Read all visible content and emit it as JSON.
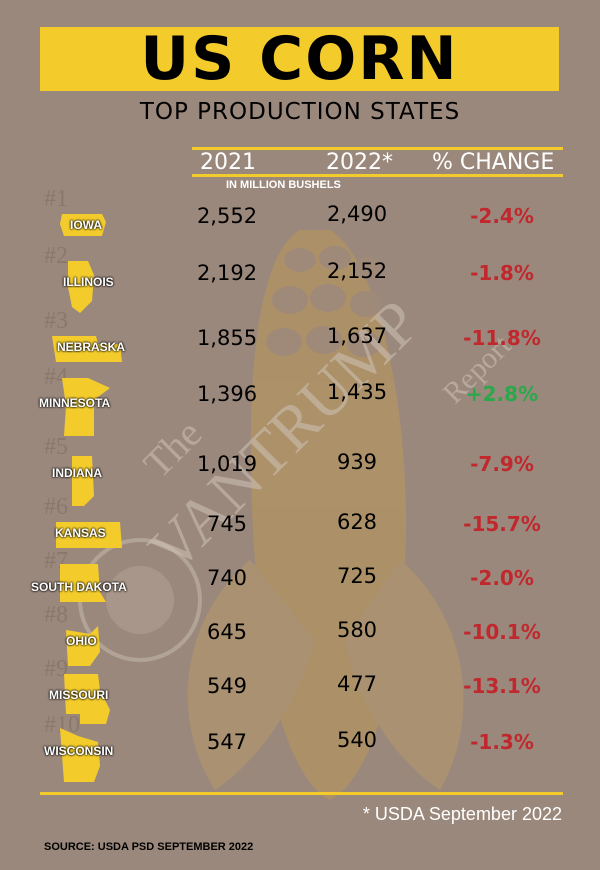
{
  "header": {
    "title": "US CORN",
    "subtitle": "TOP PRODUCTION STATES"
  },
  "colors": {
    "background": "#9b887c",
    "accent_yellow": "#f3cc2c",
    "negative_red": "#c0282d",
    "positive_green": "#2aa84a"
  },
  "watermark": {
    "line1": "The",
    "line2": "VANTRUMP",
    "line3": "Report"
  },
  "table": {
    "col_2021": "2021",
    "col_2022": "2022*",
    "col_change": "% CHANGE",
    "units": "IN MILLION BUSHELS"
  },
  "chart_data": {
    "type": "table",
    "title": "US CORN",
    "subtitle": "TOP PRODUCTION STATES",
    "columns": [
      "2021",
      "2022*",
      "% CHANGE"
    ],
    "units": "IN MILLION BUSHELS",
    "rows": [
      {
        "rank": "#1",
        "state": "IOWA",
        "y2021": "2,552",
        "y2022": "2,490",
        "change": "-2.4%",
        "v2021": 2552,
        "v2022": 2490,
        "pct": -2.4
      },
      {
        "rank": "#2",
        "state": "ILLINOIS",
        "y2021": "2,192",
        "y2022": "2,152",
        "change": "-1.8%",
        "v2021": 2192,
        "v2022": 2152,
        "pct": -1.8
      },
      {
        "rank": "#3",
        "state": "NEBRASKA",
        "y2021": "1,855",
        "y2022": "1,637",
        "change": "-11.8%",
        "v2021": 1855,
        "v2022": 1637,
        "pct": -11.8
      },
      {
        "rank": "#4",
        "state": "MINNESOTA",
        "y2021": "1,396",
        "y2022": "1,435",
        "change": "+2.8%",
        "v2021": 1396,
        "v2022": 1435,
        "pct": 2.8
      },
      {
        "rank": "#5",
        "state": "INDIANA",
        "y2021": "1,019",
        "y2022": "939",
        "change": "-7.9%",
        "v2021": 1019,
        "v2022": 939,
        "pct": -7.9
      },
      {
        "rank": "#6",
        "state": "KANSAS",
        "y2021": "745",
        "y2022": "628",
        "change": "-15.7%",
        "v2021": 745,
        "v2022": 628,
        "pct": -15.7
      },
      {
        "rank": "#7",
        "state": "SOUTH DAKOTA",
        "y2021": "740",
        "y2022": "725",
        "change": "-2.0%",
        "v2021": 740,
        "v2022": 725,
        "pct": -2.0
      },
      {
        "rank": "#8",
        "state": "OHIO",
        "y2021": "645",
        "y2022": "580",
        "change": "-10.1%",
        "v2021": 645,
        "v2022": 580,
        "pct": -10.1
      },
      {
        "rank": "#9",
        "state": "MISSOURI",
        "y2021": "549",
        "y2022": "477",
        "change": "-13.1%",
        "v2021": 549,
        "v2022": 477,
        "pct": -13.1
      },
      {
        "rank": "#10",
        "state": "WISCONSIN",
        "y2021": "547",
        "y2022": "540",
        "change": "-1.3%",
        "v2021": 547,
        "v2022": 540,
        "pct": -1.3
      }
    ]
  },
  "footer": {
    "footnote": "*  USDA September 2022",
    "source": "SOURCE: USDA PSD SEPTEMBER 2022"
  }
}
